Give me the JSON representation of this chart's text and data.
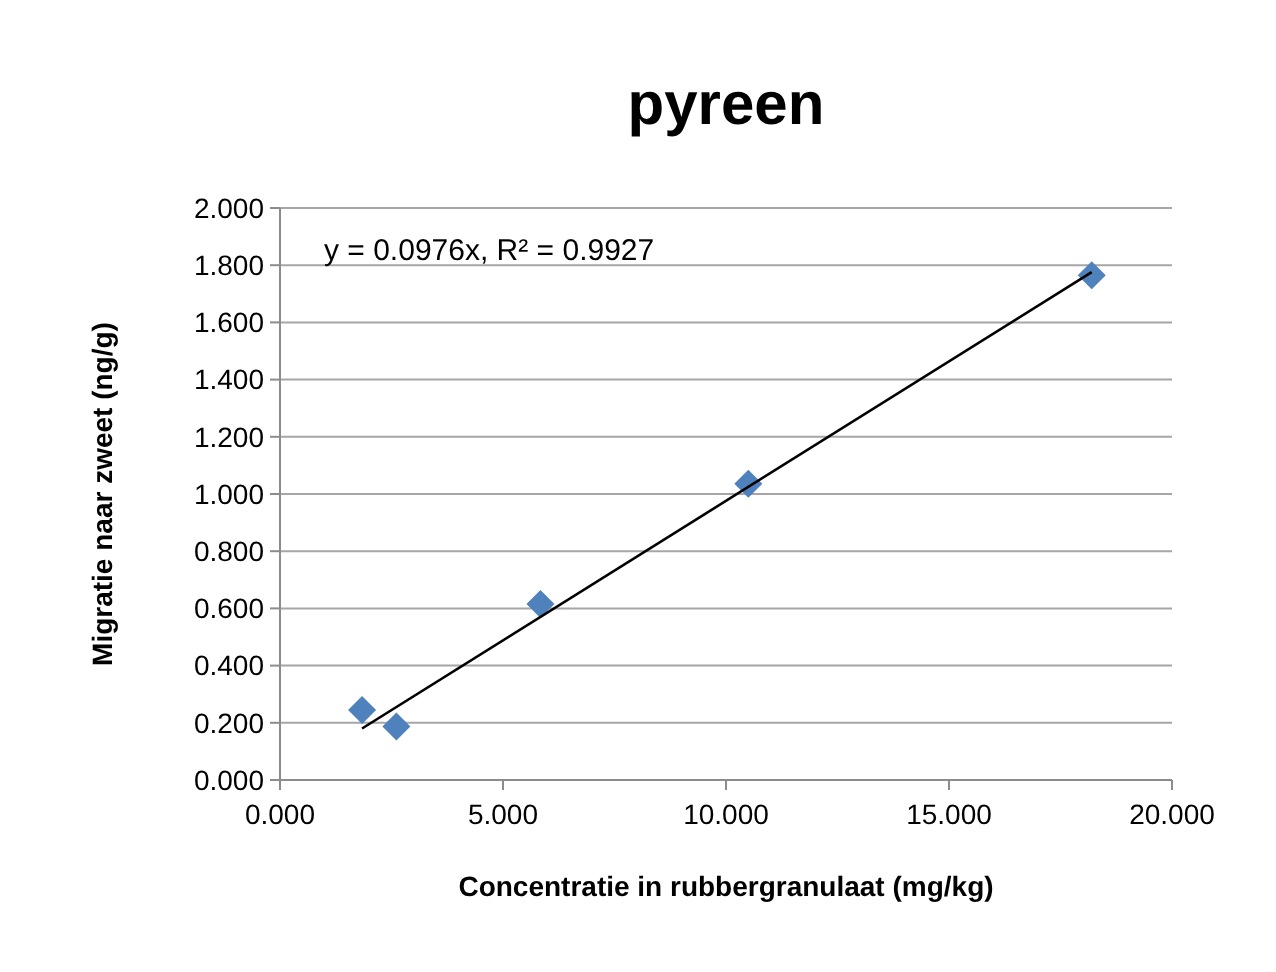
{
  "chart_data": {
    "type": "scatter",
    "title": "pyreen",
    "xlabel": "Concentratie in rubbergranulaat (mg/kg)",
    "ylabel": "Migratie naar zweet (ng/g)",
    "series": [
      {
        "color": "#4f81bd",
        "marker": "diamond",
        "x": [
          1.84,
          2.61,
          5.84,
          10.5,
          18.2
        ],
        "values": [
          0.245,
          0.187,
          0.615,
          1.036,
          1.765
        ]
      },
      {
        "type": "line",
        "color": "#000000",
        "marker": "none",
        "x": [
          1.84,
          18.2
        ],
        "values": [
          0.18,
          1.776
        ]
      }
    ],
    "xlim": [
      0,
      20
    ],
    "xticks": [
      {
        "value": 0,
        "label": "0.000"
      },
      {
        "value": 5,
        "label": "5.000"
      },
      {
        "value": 10,
        "label": "10.000"
      },
      {
        "value": 15,
        "label": "15.000"
      },
      {
        "value": 20,
        "label": "20.000"
      }
    ],
    "ylim": [
      0,
      2
    ],
    "yticks": [
      {
        "value": 0,
        "label": "0.000"
      },
      {
        "value": 0.2,
        "label": "0.200"
      },
      {
        "value": 0.4,
        "label": "0.400"
      },
      {
        "value": 0.6,
        "label": "0.600"
      },
      {
        "value": 0.8,
        "label": "0.800"
      },
      {
        "value": 1,
        "label": "1.000"
      },
      {
        "value": 1.2,
        "label": "1.200"
      },
      {
        "value": 1.4,
        "label": "1.400"
      },
      {
        "value": 1.6,
        "label": "1.600"
      },
      {
        "value": 1.8,
        "label": "1.800"
      },
      {
        "value": 2,
        "label": "2.000"
      }
    ],
    "grid": "y",
    "annotations": [
      "y = 0.0976x,  R² = 0.9927"
    ]
  }
}
